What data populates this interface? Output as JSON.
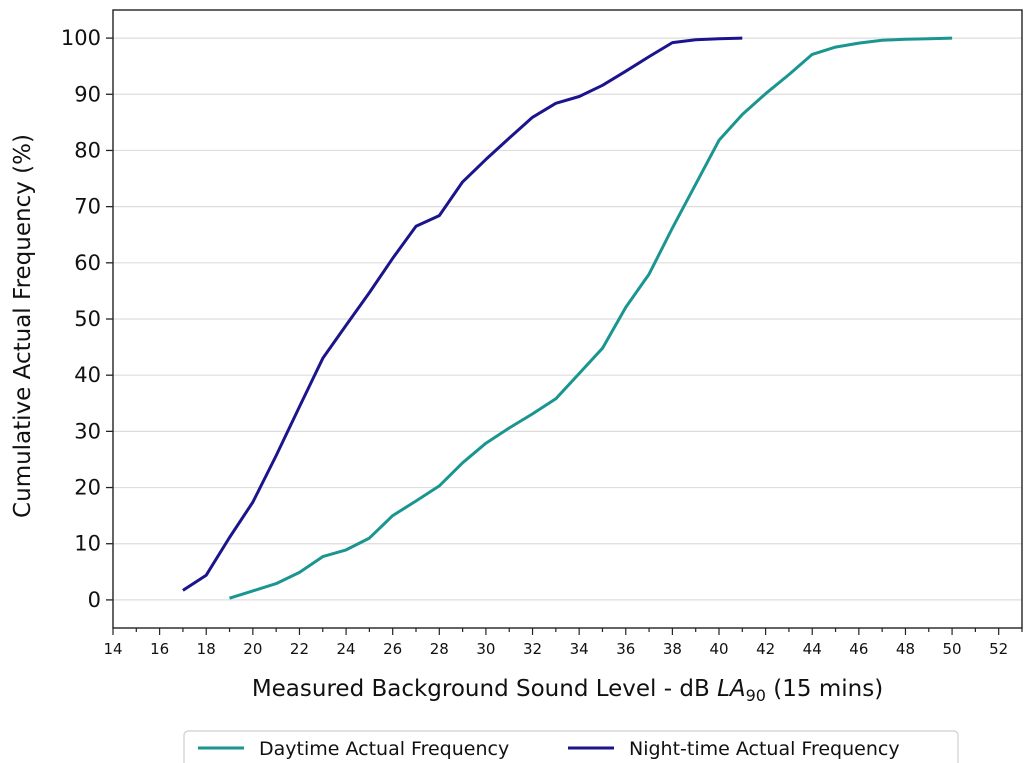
{
  "chart_data": {
    "type": "line",
    "xlabel": "Measured Background Sound Level - dB LA90 (15 mins)",
    "xlabel_parts": {
      "prefix": "Measured Background Sound Level - dB ",
      "italic": "LA",
      "subscript": "90",
      "suffix": " (15 mins)"
    },
    "ylabel": "Cumulative Actual Frequency (%)",
    "xlim": [
      14,
      53
    ],
    "ylim": [
      -5,
      105
    ],
    "xticks": [
      14,
      16,
      18,
      20,
      22,
      24,
      26,
      28,
      30,
      32,
      34,
      36,
      38,
      40,
      42,
      44,
      46,
      48,
      50,
      52
    ],
    "yticks": [
      0,
      10,
      20,
      30,
      40,
      50,
      60,
      70,
      80,
      90,
      100
    ],
    "grid": "horizontal",
    "legend_position": "bottom-center",
    "series": [
      {
        "name": "Daytime Actual Frequency",
        "color": "#1a9590",
        "x": [
          19,
          20,
          21,
          22,
          23,
          24,
          25,
          26,
          27,
          28,
          29,
          30,
          31,
          32,
          33,
          34,
          35,
          36,
          37,
          38,
          39,
          40,
          41,
          42,
          43,
          44,
          45,
          46,
          47,
          48,
          49,
          50
        ],
        "y": [
          0.3,
          1.6,
          2.9,
          4.9,
          7.7,
          8.9,
          11.0,
          15.0,
          17.6,
          20.3,
          24.4,
          27.9,
          30.6,
          33.1,
          35.8,
          40.3,
          44.8,
          52.1,
          58.0,
          66.2,
          74.0,
          81.8,
          86.4,
          90.1,
          93.5,
          97.1,
          98.4,
          99.1,
          99.6,
          99.8,
          99.9,
          100.0
        ]
      },
      {
        "name": "Night-time Actual Frequency",
        "color": "#1b148c",
        "x": [
          17,
          18,
          19,
          20,
          21,
          22,
          23,
          24,
          25,
          26,
          27,
          28,
          29,
          30,
          31,
          32,
          33,
          34,
          35,
          36,
          37,
          38,
          39,
          40,
          41
        ],
        "y": [
          1.7,
          4.4,
          11.1,
          17.4,
          25.7,
          34.4,
          43.0,
          48.9,
          54.7,
          60.8,
          66.5,
          68.4,
          74.4,
          78.4,
          82.2,
          85.9,
          88.4,
          89.6,
          91.6,
          94.1,
          96.7,
          99.2,
          99.7,
          99.9,
          100.0
        ]
      }
    ]
  }
}
